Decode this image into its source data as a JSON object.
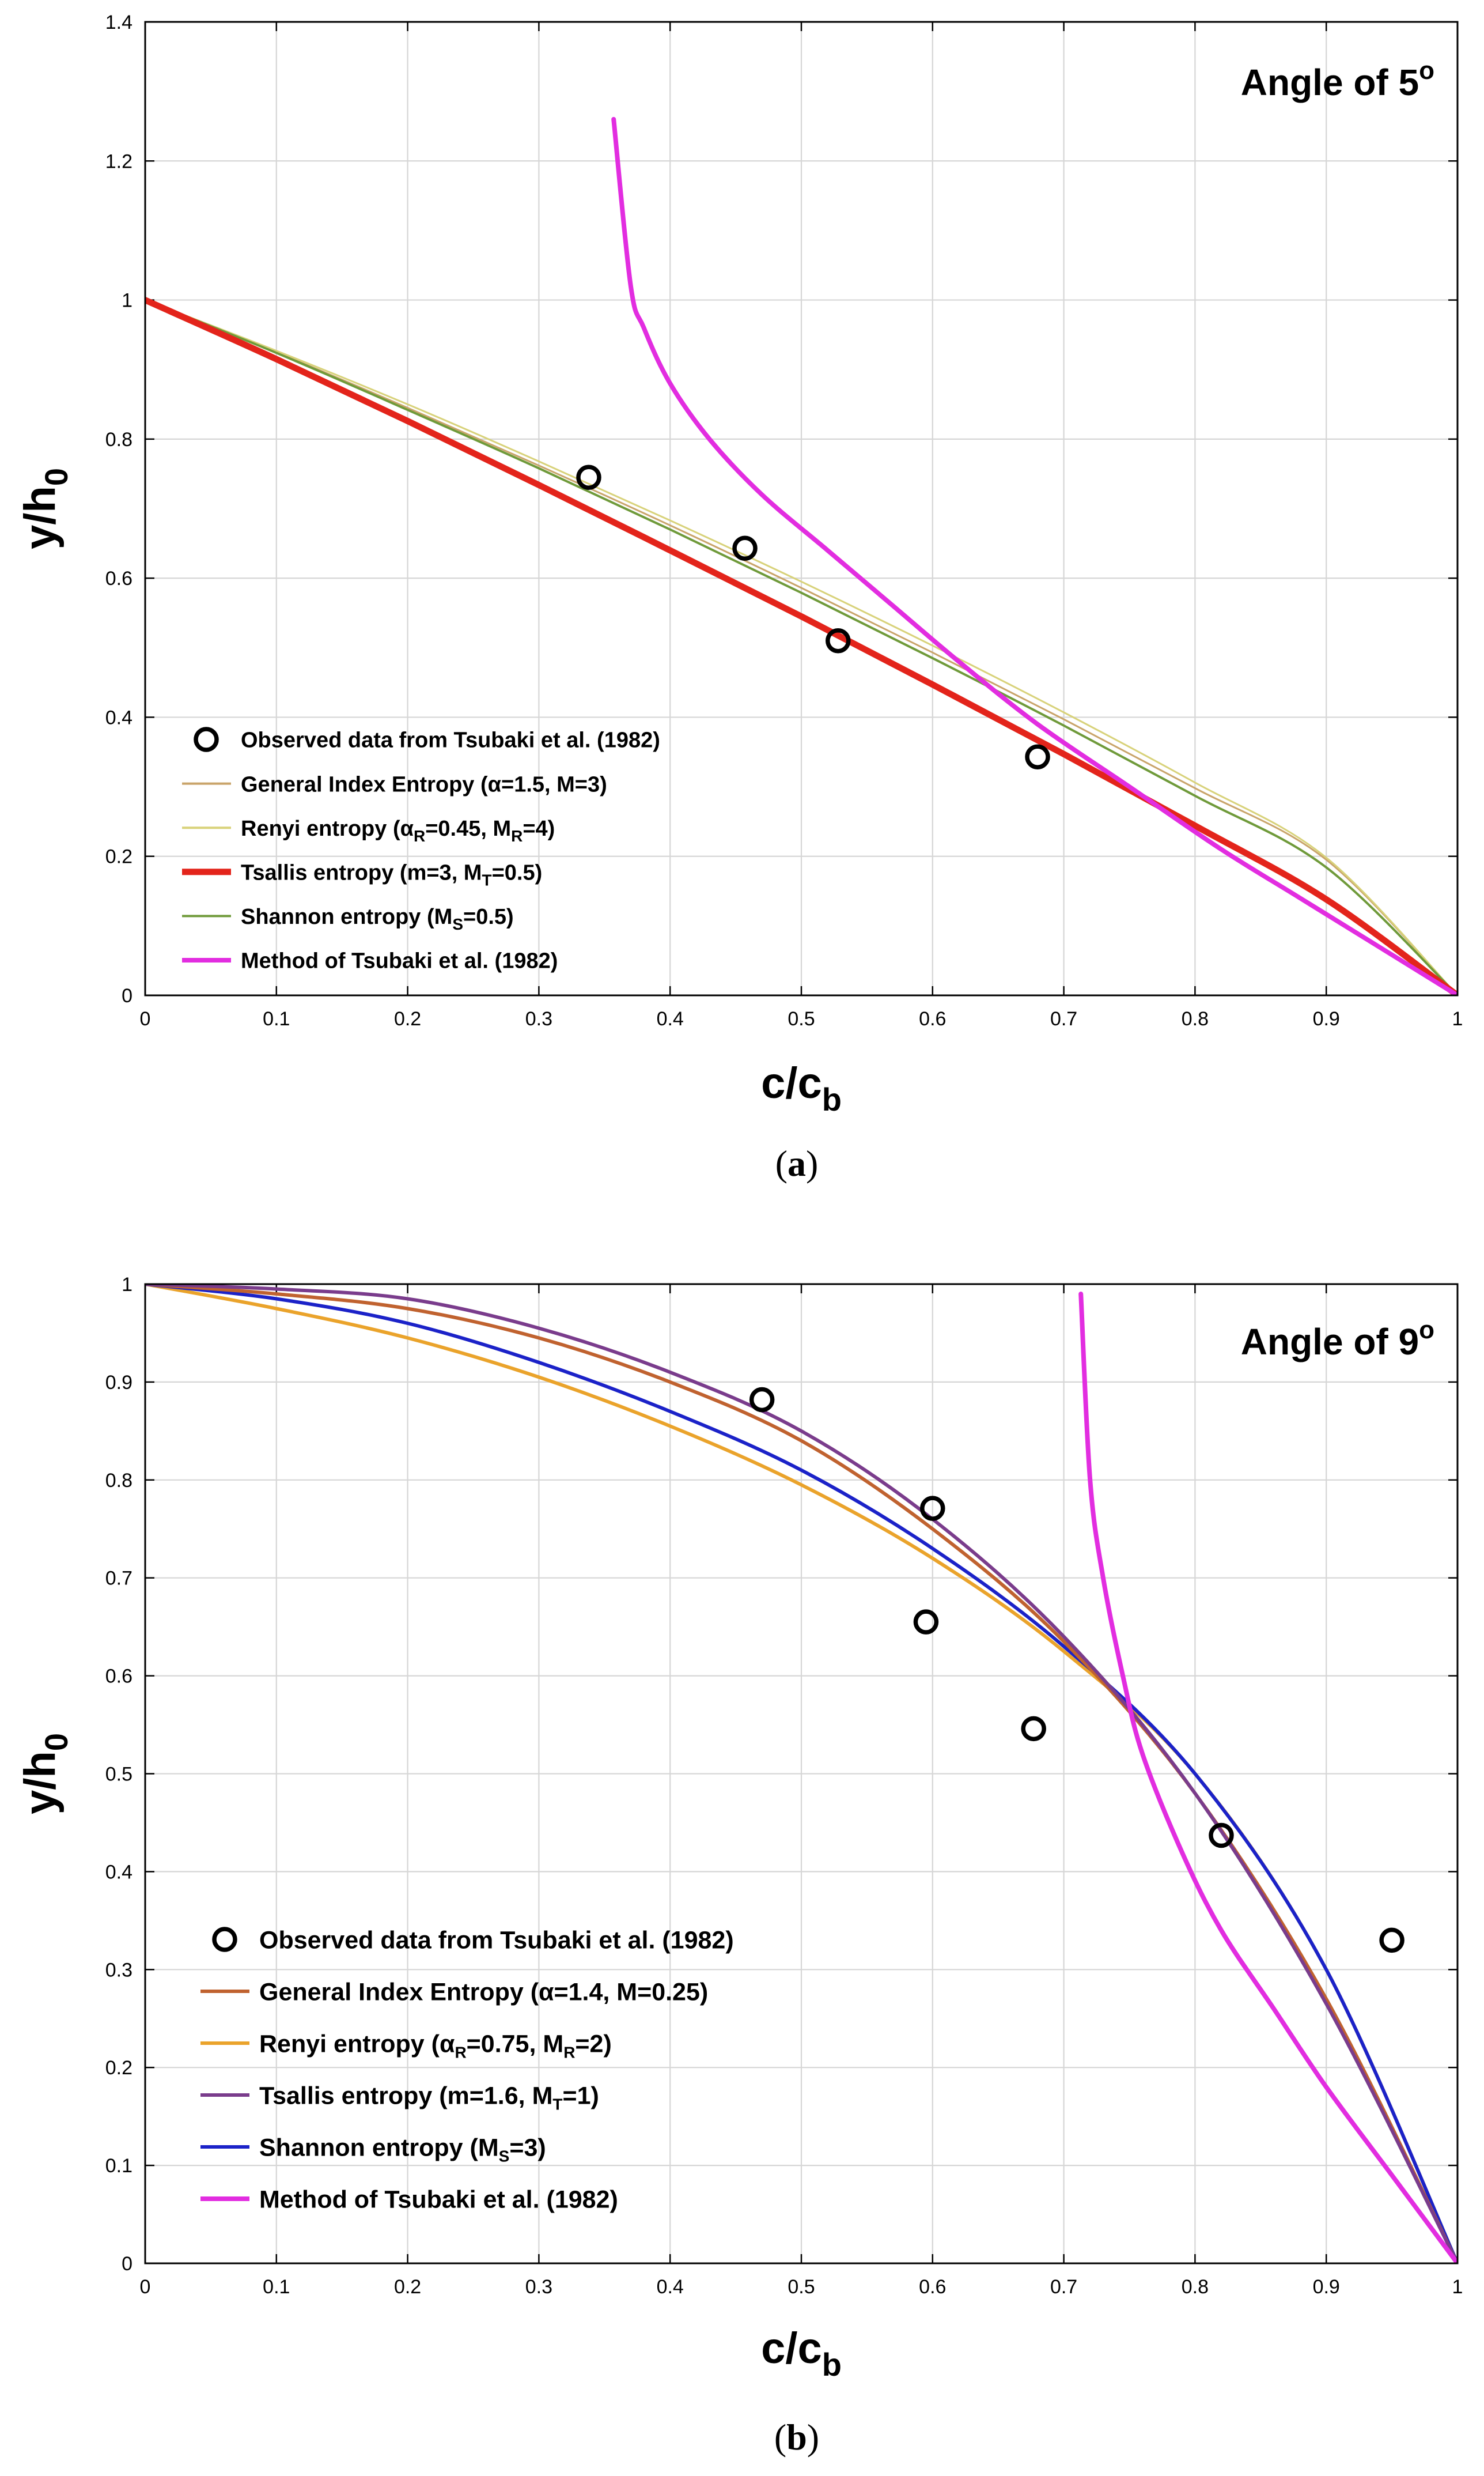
{
  "chart_data": [
    {
      "panel_label": "a",
      "type": "line",
      "annotation": "Angle of 5",
      "annotation_sup": "o",
      "xlabel": "c/c",
      "xlabel_sub": "b",
      "ylabel": "y/h",
      "ylabel_sub": "0",
      "xlim": [
        0,
        1
      ],
      "ylim": [
        0,
        1.4
      ],
      "xticks": [
        0,
        0.1,
        0.2,
        0.3,
        0.4,
        0.5,
        0.6,
        0.7,
        0.8,
        0.9,
        1
      ],
      "xtick_labels": [
        "0",
        "0.1",
        "0.2",
        "0.3",
        "0.4",
        "0.5",
        "0.6",
        "0.7",
        "0.8",
        "0.9",
        "1"
      ],
      "yticks": [
        0,
        0.2,
        0.4,
        0.6,
        0.8,
        1,
        1.2,
        1.4
      ],
      "ytick_labels": [
        "0",
        "0.2",
        "0.4",
        "0.6",
        "0.8",
        "1",
        "1.2",
        "1.4"
      ],
      "grid": true,
      "legend_position": "bottom-left",
      "legend": [
        {
          "label": "Observed data from Tsubaki et al. (1982)",
          "symbol": "marker",
          "color": "#000000"
        },
        {
          "label": "General Index Entropy (α=1.5, M=3)",
          "symbol": "line",
          "color": "#c9a46a"
        },
        {
          "label": "Renyi entropy (α",
          "sub1": "R",
          "mid": "=0.45, M",
          "sub2": "R",
          "tail": "=4)",
          "symbol": "line",
          "color": "#d8d27a"
        },
        {
          "label": "Tsallis entropy (m=3, M",
          "sub1": "T",
          "tail": "=0.5)",
          "symbol": "line",
          "color": "#e3241b"
        },
        {
          "label": "Shannon entropy (M",
          "sub1": "S",
          "tail": "=0.5)",
          "symbol": "line",
          "color": "#6f9a3a"
        },
        {
          "label": "Method of Tsubaki et al. (1982)",
          "symbol": "line",
          "color": "#e22de0"
        }
      ],
      "observed": {
        "x": [
          0.338,
          0.457,
          0.528,
          0.68
        ],
        "y": [
          0.745,
          0.643,
          0.51,
          0.343
        ]
      },
      "series": [
        {
          "name": "General Index Entropy",
          "color": "#c9a46a",
          "width": 3,
          "x": [
            0,
            0.1,
            0.2,
            0.3,
            0.4,
            0.5,
            0.6,
            0.7,
            0.8,
            0.9,
            1
          ],
          "y": [
            1,
            0.925,
            0.845,
            0.762,
            0.676,
            0.586,
            0.493,
            0.397,
            0.298,
            0.195,
            0
          ]
        },
        {
          "name": "Renyi entropy",
          "color": "#d8d27a",
          "width": 3,
          "x": [
            0,
            0.1,
            0.2,
            0.3,
            0.4,
            0.5,
            0.6,
            0.7,
            0.8,
            0.9,
            1
          ],
          "y": [
            1,
            0.927,
            0.85,
            0.768,
            0.683,
            0.595,
            0.503,
            0.407,
            0.306,
            0.198,
            0
          ]
        },
        {
          "name": "Shannon entropy",
          "color": "#6f9a3a",
          "width": 4,
          "x": [
            0,
            0.1,
            0.2,
            0.3,
            0.4,
            0.5,
            0.6,
            0.7,
            0.8,
            0.9,
            1
          ],
          "y": [
            1,
            0.924,
            0.842,
            0.758,
            0.67,
            0.579,
            0.485,
            0.388,
            0.287,
            0.184,
            0
          ]
        },
        {
          "name": "Tsallis entropy",
          "color": "#e3241b",
          "width": 11,
          "x": [
            0,
            0.1,
            0.2,
            0.3,
            0.4,
            0.5,
            0.6,
            0.7,
            0.8,
            0.9,
            1
          ],
          "y": [
            1,
            0.915,
            0.826,
            0.734,
            0.64,
            0.545,
            0.447,
            0.347,
            0.244,
            0.138,
            0
          ]
        },
        {
          "name": "Method of Tsubaki et al. (1982)",
          "color": "#e22de0",
          "width": 8,
          "x": [
            0.357,
            0.37,
            0.38,
            0.4,
            0.43,
            0.47,
            0.52,
            0.57,
            0.62,
            0.68,
            0.75,
            0.82,
            0.88,
            0.94,
            1
          ],
          "y": [
            1.26,
            1.02,
            0.96,
            0.88,
            0.8,
            0.72,
            0.64,
            0.56,
            0.48,
            0.39,
            0.3,
            0.21,
            0.14,
            0.07,
            0
          ]
        }
      ]
    },
    {
      "panel_label": "b",
      "type": "line",
      "annotation": "Angle of 9",
      "annotation_sup": "o",
      "xlabel": "c/c",
      "xlabel_sub": "b",
      "ylabel": "y/h",
      "ylabel_sub": "0",
      "xlim": [
        0,
        1
      ],
      "ylim": [
        0,
        1
      ],
      "xticks": [
        0,
        0.1,
        0.2,
        0.3,
        0.4,
        0.5,
        0.6,
        0.7,
        0.8,
        0.9,
        1
      ],
      "xtick_labels": [
        "0",
        "0.1",
        "0.2",
        "0.3",
        "0.4",
        "0.5",
        "0.6",
        "0.7",
        "0.8",
        "0.9",
        "1"
      ],
      "yticks": [
        0,
        0.1,
        0.2,
        0.3,
        0.4,
        0.5,
        0.6,
        0.7,
        0.8,
        0.9,
        1
      ],
      "ytick_labels": [
        "0",
        "0.1",
        "0.2",
        "0.3",
        "0.4",
        "0.5",
        "0.6",
        "0.7",
        "0.8",
        "0.9",
        "1"
      ],
      "grid": true,
      "legend_position": "bottom-left",
      "legend": [
        {
          "label": "Observed data from Tsubaki et al. (1982)",
          "symbol": "marker",
          "color": "#000000"
        },
        {
          "label": "General Index Entropy (α=1.4, M=0.25)",
          "symbol": "line",
          "color": "#c0622f"
        },
        {
          "label": "Renyi entropy (α",
          "sub1": "R",
          "mid": "=0.75, M",
          "sub2": "R",
          "tail": "=2)",
          "symbol": "line",
          "color": "#eaa32b"
        },
        {
          "label": "Tsallis entropy (m=1.6, M",
          "sub1": "T",
          "tail": "=1)",
          "symbol": "line",
          "color": "#7a3c8c"
        },
        {
          "label": "Shannon entropy (M",
          "sub1": "S",
          "tail": "=3)",
          "symbol": "line",
          "color": "#1b22c8"
        },
        {
          "label": "Method of Tsubaki et al. (1982)",
          "symbol": "line",
          "color": "#e22de0"
        }
      ],
      "observed": {
        "x": [
          0.47,
          0.6,
          0.595,
          0.677,
          0.82,
          0.95
        ],
        "y": [
          0.882,
          0.771,
          0.655,
          0.546,
          0.437,
          0.33
        ]
      },
      "series": [
        {
          "name": "Renyi entropy",
          "color": "#eaa32b",
          "width": 6,
          "x": [
            0,
            0.1,
            0.2,
            0.3,
            0.4,
            0.5,
            0.6,
            0.7,
            0.8,
            0.9,
            1
          ],
          "y": [
            1,
            0.975,
            0.945,
            0.905,
            0.855,
            0.795,
            0.72,
            0.625,
            0.5,
            0.3,
            0
          ]
        },
        {
          "name": "Shannon entropy",
          "color": "#1b22c8",
          "width": 6,
          "x": [
            0,
            0.1,
            0.2,
            0.3,
            0.4,
            0.5,
            0.6,
            0.7,
            0.8,
            0.9,
            1
          ],
          "y": [
            1,
            0.985,
            0.96,
            0.92,
            0.87,
            0.81,
            0.73,
            0.63,
            0.5,
            0.3,
            0
          ]
        },
        {
          "name": "General Index Entropy",
          "color": "#c0622f",
          "width": 6,
          "x": [
            0,
            0.1,
            0.2,
            0.3,
            0.4,
            0.5,
            0.6,
            0.7,
            0.8,
            0.9,
            1
          ],
          "y": [
            1,
            0.99,
            0.975,
            0.945,
            0.9,
            0.84,
            0.75,
            0.635,
            0.48,
            0.27,
            0
          ]
        },
        {
          "name": "Tsallis entropy",
          "color": "#7a3c8c",
          "width": 6,
          "x": [
            0,
            0.1,
            0.2,
            0.3,
            0.4,
            0.5,
            0.6,
            0.7,
            0.8,
            0.9,
            1
          ],
          "y": [
            1,
            0.995,
            0.985,
            0.955,
            0.91,
            0.85,
            0.76,
            0.64,
            0.48,
            0.265,
            0
          ]
        },
        {
          "name": "Method of Tsubaki et al. (1982)",
          "color": "#e22de0",
          "width": 8,
          "x": [
            0.713,
            0.72,
            0.73,
            0.745,
            0.76,
            0.79,
            0.82,
            0.86,
            0.9,
            0.95,
            1
          ],
          "y": [
            0.99,
            0.8,
            0.7,
            0.6,
            0.52,
            0.42,
            0.34,
            0.26,
            0.18,
            0.09,
            0
          ]
        }
      ]
    }
  ]
}
